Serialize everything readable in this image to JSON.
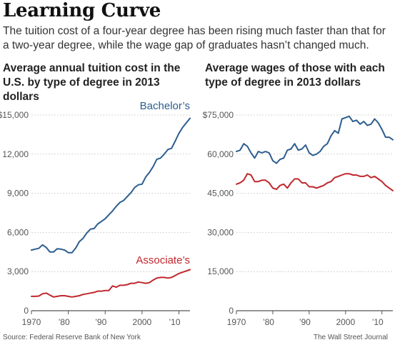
{
  "header": {
    "title": "Learning Curve",
    "dek": "The tuition cost of a four-year degree has been rising much faster than that for a two-year degree, while the wage gap of graduates hasn’t changed much."
  },
  "footer": {
    "source": "Source: Federal Reserve Bank of New York",
    "credit": "The Wall Street Journal"
  },
  "colors": {
    "blue": "#2c5d8f",
    "red": "#c0272d",
    "grid": "#d4d4d4",
    "axis": "#555555"
  },
  "chart_data": [
    {
      "type": "line",
      "title": "Average annual tuition cost in the U.S. by type of degree in 2013 dollars",
      "ylim": [
        0,
        15000
      ],
      "xlim": [
        1970,
        2013
      ],
      "yticks": [
        0,
        3000,
        6000,
        9000,
        12000,
        15000
      ],
      "ytick_labels": [
        "0",
        "3,000",
        "6,000",
        "9,000",
        "12,000",
        "$15,000"
      ],
      "xticks": [
        1970,
        1980,
        1990,
        2000,
        2010
      ],
      "xtick_labels": [
        "1970",
        "’80",
        "’90",
        "2000",
        "’10"
      ],
      "grid": true,
      "series": [
        {
          "name": "Bachelor’s",
          "color": "#2c5d8f",
          "x": [
            1970,
            1971,
            1972,
            1973,
            1974,
            1975,
            1976,
            1977,
            1978,
            1979,
            1980,
            1981,
            1982,
            1983,
            1984,
            1985,
            1986,
            1987,
            1988,
            1989,
            1990,
            1991,
            1992,
            1993,
            1994,
            1995,
            1996,
            1997,
            1998,
            1999,
            2000,
            2001,
            2002,
            2003,
            2004,
            2005,
            2006,
            2007,
            2008,
            2009,
            2010,
            2011,
            2012,
            2013
          ],
          "y": [
            4650,
            4720,
            4780,
            5050,
            4850,
            4500,
            4500,
            4750,
            4720,
            4650,
            4450,
            4450,
            4800,
            5300,
            5550,
            5950,
            6250,
            6300,
            6650,
            6850,
            7050,
            7350,
            7650,
            8000,
            8300,
            8450,
            8750,
            9050,
            9450,
            9650,
            9700,
            10250,
            10600,
            11050,
            11600,
            11700,
            12000,
            12350,
            12450,
            13000,
            13600,
            14050,
            14400,
            14750
          ]
        },
        {
          "name": "Associate’s",
          "color": "#c0272d",
          "x": [
            1970,
            1971,
            1972,
            1973,
            1974,
            1975,
            1976,
            1977,
            1978,
            1979,
            1980,
            1981,
            1982,
            1983,
            1984,
            1985,
            1986,
            1987,
            1988,
            1989,
            1990,
            1991,
            1992,
            1993,
            1994,
            1995,
            1996,
            1997,
            1998,
            1999,
            2000,
            2001,
            2002,
            2003,
            2004,
            2005,
            2006,
            2007,
            2008,
            2009,
            2010,
            2011,
            2012,
            2013
          ],
          "y": [
            1100,
            1100,
            1120,
            1300,
            1350,
            1200,
            1050,
            1100,
            1150,
            1150,
            1100,
            1050,
            1100,
            1150,
            1250,
            1300,
            1350,
            1400,
            1500,
            1500,
            1550,
            1550,
            1900,
            1800,
            1950,
            1950,
            2000,
            2100,
            2100,
            2200,
            2150,
            2100,
            2150,
            2350,
            2500,
            2550,
            2550,
            2500,
            2550,
            2700,
            2850,
            2950,
            3050,
            3150
          ]
        }
      ]
    },
    {
      "type": "line",
      "title": "Average wages of those with each type of degree in 2013 dollars",
      "ylim": [
        0,
        75000
      ],
      "xlim": [
        1970,
        2013
      ],
      "yticks": [
        0,
        15000,
        30000,
        45000,
        60000,
        75000
      ],
      "ytick_labels": [
        "0",
        "15,000",
        "30,000",
        "45,000",
        "60,000",
        "$75,000"
      ],
      "xticks": [
        1970,
        1980,
        1990,
        2000,
        2010
      ],
      "xtick_labels": [
        "1970",
        "’80",
        "’90",
        "2000",
        "’10"
      ],
      "grid": true,
      "series": [
        {
          "color": "#2c5d8f",
          "x": [
            1970,
            1971,
            1972,
            1973,
            1974,
            1975,
            1976,
            1977,
            1978,
            1979,
            1980,
            1981,
            1982,
            1983,
            1984,
            1985,
            1986,
            1987,
            1988,
            1989,
            1990,
            1991,
            1992,
            1993,
            1994,
            1995,
            1996,
            1997,
            1998,
            1999,
            2000,
            2001,
            2002,
            2003,
            2004,
            2005,
            2006,
            2007,
            2008,
            2009,
            2010,
            2011,
            2012,
            2013
          ],
          "y": [
            61000,
            61500,
            64000,
            63000,
            60500,
            58500,
            61000,
            60500,
            61000,
            60500,
            57500,
            56500,
            58000,
            58500,
            61500,
            62000,
            64000,
            61500,
            62000,
            63500,
            60500,
            59500,
            60000,
            61000,
            63000,
            64000,
            67000,
            69000,
            68000,
            73500,
            74000,
            74500,
            72500,
            73000,
            71500,
            72500,
            71000,
            71500,
            73500,
            72000,
            69500,
            66500,
            66500,
            65500
          ]
        },
        {
          "color": "#c0272d",
          "x": [
            1970,
            1971,
            1972,
            1973,
            1974,
            1975,
            1976,
            1977,
            1978,
            1979,
            1980,
            1981,
            1982,
            1983,
            1984,
            1985,
            1986,
            1987,
            1988,
            1989,
            1990,
            1991,
            1992,
            1993,
            1994,
            1995,
            1996,
            1997,
            1998,
            1999,
            2000,
            2001,
            2002,
            2003,
            2004,
            2005,
            2006,
            2007,
            2008,
            2009,
            2010,
            2011,
            2012,
            2013
          ],
          "y": [
            48500,
            49000,
            50000,
            52500,
            52000,
            49500,
            49500,
            50000,
            50000,
            49000,
            47000,
            46500,
            48000,
            48500,
            47000,
            49000,
            50500,
            50500,
            49000,
            49000,
            47500,
            47500,
            47000,
            47500,
            48000,
            49000,
            49500,
            51000,
            51500,
            52000,
            52500,
            52500,
            52000,
            52000,
            51500,
            51500,
            52000,
            51000,
            51500,
            50500,
            49500,
            48000,
            47000,
            46000
          ]
        }
      ]
    }
  ],
  "series_labels": {
    "bachelors": "Bachelor’s",
    "associates": "Associate’s"
  }
}
